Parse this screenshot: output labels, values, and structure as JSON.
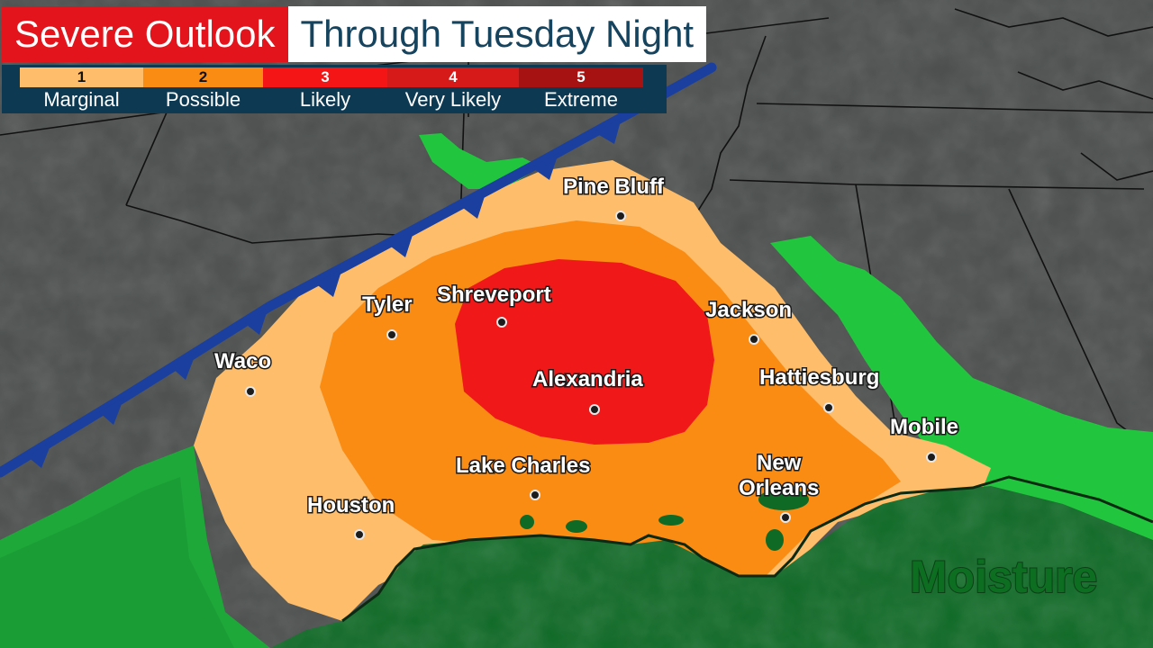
{
  "title": {
    "main": "Severe Outlook",
    "sub": "Through Tuesday Night"
  },
  "legend": [
    {
      "level": "1",
      "label": "Marginal",
      "color": "#fdbd6a"
    },
    {
      "level": "2",
      "label": "Possible",
      "color": "#fa8c14"
    },
    {
      "level": "3",
      "label": "Likely",
      "color": "#f41616"
    },
    {
      "level": "4",
      "label": "Very Likely",
      "color": "#d61a1a"
    },
    {
      "level": "5",
      "label": "Extreme",
      "color": "#a61212"
    }
  ],
  "cities": {
    "pine_bluff": "Pine Bluff",
    "tyler": "Tyler",
    "shreveport": "Shreveport",
    "jackson": "Jackson",
    "waco": "Waco",
    "alexandria": "Alexandria",
    "hattiesburg": "Hattiesburg",
    "mobile": "Mobile",
    "new_orleans_line1": "New",
    "new_orleans_line2": "Orleans",
    "lake_charles": "Lake Charles",
    "houston": "Houston"
  },
  "moisture_label": "Moisture",
  "colors": {
    "land": "#4a4d4c",
    "moisture": "#1fb83a",
    "gulf": "#0f6a26",
    "front": "#1a3f9e"
  },
  "icons": {
    "front": "cold-front-icon",
    "city": "city-dot-icon"
  }
}
